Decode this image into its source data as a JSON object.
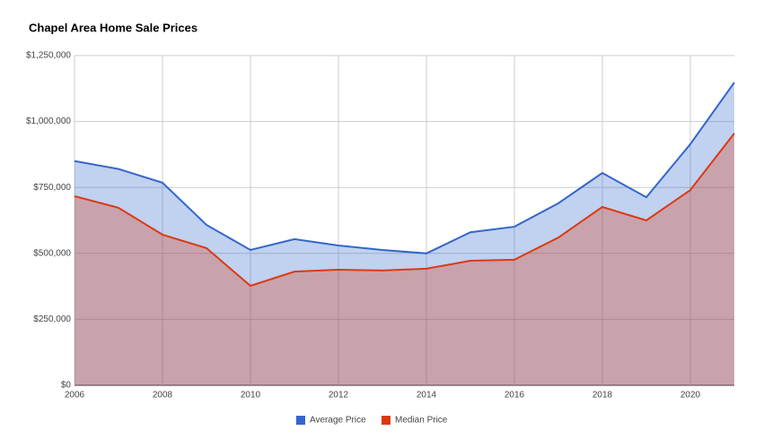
{
  "chart_data": {
    "type": "area",
    "title": "Chapel Area Home Sale Prices",
    "x": [
      2006,
      2007,
      2008,
      2009,
      2010,
      2011,
      2012,
      2013,
      2014,
      2015,
      2016,
      2017,
      2018,
      2019,
      2020,
      2021
    ],
    "series": [
      {
        "name": "Average Price",
        "color": "#3366cc",
        "values": [
          850000,
          820000,
          768000,
          608000,
          513000,
          554000,
          530000,
          513000,
          500000,
          580000,
          601000,
          690000,
          805000,
          713000,
          914000,
          1148000
        ]
      },
      {
        "name": "Median Price",
        "color": "#dc3912",
        "values": [
          717000,
          673000,
          571000,
          520000,
          377000,
          431000,
          438000,
          435000,
          442000,
          472000,
          476000,
          560000,
          676000,
          625000,
          740000,
          955000
        ]
      }
    ],
    "xlim": [
      2006,
      2021
    ],
    "xticks": [
      2006,
      2008,
      2010,
      2012,
      2014,
      2016,
      2018,
      2020
    ],
    "ylim": [
      0,
      1250000
    ],
    "yticks": [
      {
        "value": 0,
        "label": "$0"
      },
      {
        "value": 250000,
        "label": "$250,000"
      },
      {
        "value": 500000,
        "label": "$500,000"
      },
      {
        "value": 750000,
        "label": "$750,000"
      },
      {
        "value": 1000000,
        "label": "$1,000,000"
      },
      {
        "value": 1250000,
        "label": "$1,250,000"
      }
    ],
    "grid": true,
    "legend": "bottom"
  }
}
